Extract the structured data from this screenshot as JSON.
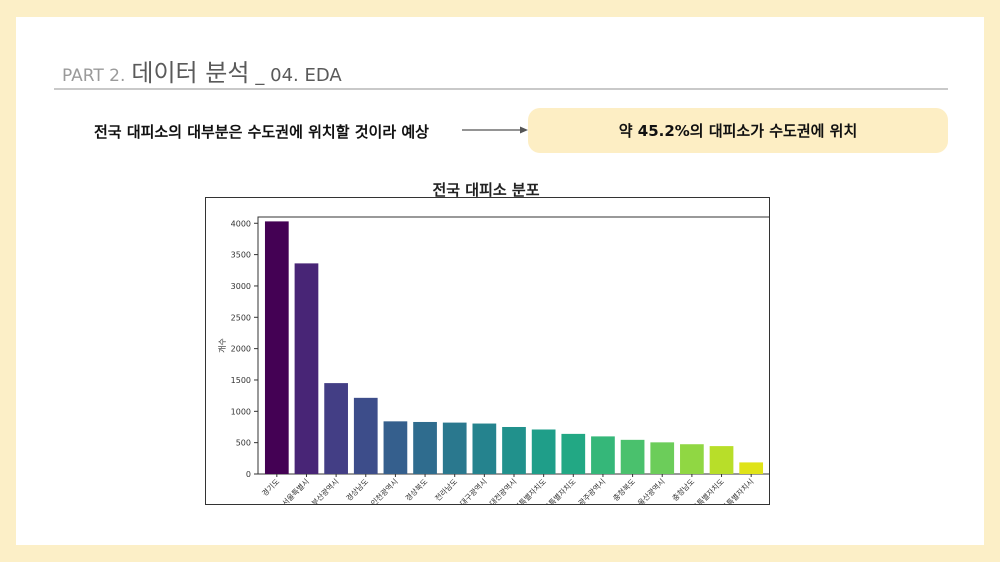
{
  "header": {
    "part": "PART 2.",
    "title": "데이터 분석",
    "subtitle": "_ 04. EDA"
  },
  "hypothesis": "전국 대피소의 대부분은 수도권에 위치할 것이라 예상",
  "result": "약 45.2%의 대피소가 수도권에 위치",
  "chart_data": {
    "type": "bar",
    "title": "전국 대피소 분포",
    "xlabel": "",
    "ylabel": "개수",
    "ylim": [
      0,
      4100
    ],
    "yticks": [
      0,
      500,
      1000,
      1500,
      2000,
      2500,
      3000,
      3500,
      4000
    ],
    "grid": false,
    "categories": [
      "경기도",
      "서울특별시",
      "부산광역시",
      "경상남도",
      "인천광역시",
      "경상북도",
      "전라남도",
      "대구광역시",
      "대전광역시",
      "강원특별자치도",
      "전북특별자치도",
      "광주광역시",
      "충청북도",
      "울산광역시",
      "충청남도",
      "제주특별자치도",
      "세종특별자치시"
    ],
    "values": [
      4030,
      3360,
      1450,
      1215,
      840,
      830,
      820,
      805,
      750,
      710,
      640,
      600,
      545,
      505,
      475,
      445,
      185
    ],
    "colors": [
      "#440154",
      "#482576",
      "#433e85",
      "#3d4d8a",
      "#355f8d",
      "#2f6c8e",
      "#2a788e",
      "#25838e",
      "#21918c",
      "#1f9e89",
      "#22a884",
      "#35b779",
      "#4ac16d",
      "#6ccd5a",
      "#90d743",
      "#b8de29",
      "#dfe318"
    ]
  }
}
